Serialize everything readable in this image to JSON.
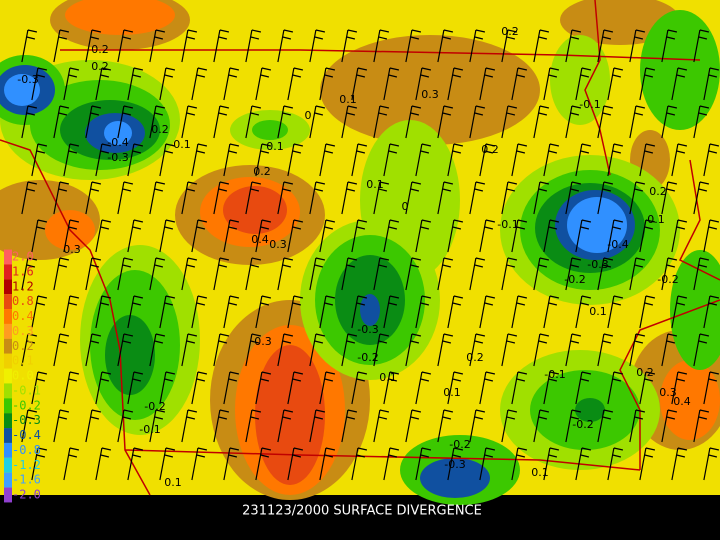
{
  "title": "231123/2000 SURFACE DIVERGENCE",
  "legend": {
    "labels": [
      "2.0",
      "1.6",
      "1.2",
      "0.8",
      "0.4",
      "0.3",
      "0.2",
      "0.1",
      "0.0",
      "-0.1",
      "-0.2",
      "-0.3",
      "-0.4",
      "-0.8",
      "-1.2",
      "-1.6",
      "-2.0"
    ],
    "colors": [
      "#ff6060",
      "#e02020",
      "#b00000",
      "#e84a10",
      "#ff7800",
      "#ff9c20",
      "#c88c14",
      "#f0d000",
      "#f0f000",
      "#a0e000",
      "#3cc800",
      "#0a8c14",
      "#1050a0",
      "#3090ff",
      "#20d0e0",
      "#40a0ff",
      "#9040d0"
    ]
  },
  "contour_labels": [
    "0.2",
    "0.2",
    "-0.3",
    "0.1",
    "0.3",
    "0.2",
    "-0.1",
    "0.2",
    "-0.4",
    "-0.1",
    "-0.3",
    "0",
    "0.1",
    "0.2",
    "0.2",
    "0.1",
    "0",
    "0.2",
    "0.1",
    "-0.1",
    "-0.4",
    "0.3",
    "0.4",
    "0.3",
    "-0.3",
    "-0.2",
    "-0.2",
    "0.1",
    "-0.3",
    "0.3",
    "-0.2",
    "0.2",
    "-0.1",
    "0.2",
    "0.1",
    "0.1",
    "0.3",
    "0.4",
    "-0.2",
    "-0.2",
    "-0.1",
    "-0.2",
    "-0.3",
    "0.1",
    "0.1"
  ]
}
